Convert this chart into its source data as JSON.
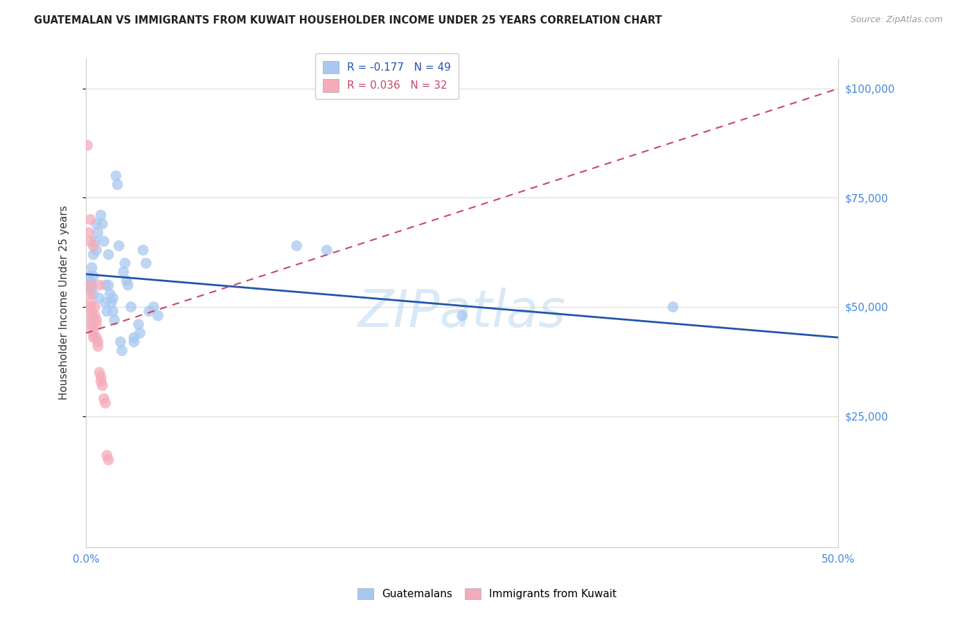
{
  "title": "GUATEMALAN VS IMMIGRANTS FROM KUWAIT HOUSEHOLDER INCOME UNDER 25 YEARS CORRELATION CHART",
  "source": "Source: ZipAtlas.com",
  "ylabel": "Householder Income Under 25 years",
  "xlim": [
    0.0,
    0.5
  ],
  "ylim": [
    -5000,
    107000
  ],
  "yticks": [
    25000,
    50000,
    75000,
    100000
  ],
  "ytick_labels": [
    "$25,000",
    "$50,000",
    "$75,000",
    "$100,000"
  ],
  "xticks": [
    0.0,
    0.05,
    0.1,
    0.15,
    0.2,
    0.25,
    0.3,
    0.35,
    0.4,
    0.45,
    0.5
  ],
  "xtick_labels": [
    "0.0%",
    "",
    "",
    "",
    "",
    "",
    "",
    "",
    "",
    "",
    "50.0%"
  ],
  "blue_color": "#A8C8F0",
  "pink_color": "#F4ABBA",
  "blue_line_color": "#2255AA",
  "pink_line_color": "#CC4466",
  "watermark": "ZIPatlas",
  "legend_R_blue": "R = -0.177",
  "legend_N_blue": "N = 49",
  "legend_R_pink": "R = 0.036",
  "legend_N_pink": "N = 32",
  "blue_dots": [
    [
      0.002,
      57000
    ],
    [
      0.003,
      56000
    ],
    [
      0.003,
      54000
    ],
    [
      0.004,
      59000
    ],
    [
      0.004,
      55000
    ],
    [
      0.005,
      62000
    ],
    [
      0.005,
      57000
    ],
    [
      0.005,
      53000
    ],
    [
      0.006,
      65000
    ],
    [
      0.007,
      69000
    ],
    [
      0.007,
      63000
    ],
    [
      0.008,
      67000
    ],
    [
      0.009,
      52000
    ],
    [
      0.01,
      71000
    ],
    [
      0.011,
      69000
    ],
    [
      0.012,
      65000
    ],
    [
      0.013,
      55000
    ],
    [
      0.013,
      51000
    ],
    [
      0.014,
      49000
    ],
    [
      0.015,
      62000
    ],
    [
      0.015,
      55000
    ],
    [
      0.016,
      53000
    ],
    [
      0.017,
      51000
    ],
    [
      0.018,
      52000
    ],
    [
      0.018,
      49000
    ],
    [
      0.019,
      47000
    ],
    [
      0.02,
      80000
    ],
    [
      0.021,
      78000
    ],
    [
      0.022,
      64000
    ],
    [
      0.023,
      42000
    ],
    [
      0.024,
      40000
    ],
    [
      0.025,
      58000
    ],
    [
      0.026,
      60000
    ],
    [
      0.027,
      56000
    ],
    [
      0.028,
      55000
    ],
    [
      0.03,
      50000
    ],
    [
      0.032,
      43000
    ],
    [
      0.032,
      42000
    ],
    [
      0.035,
      46000
    ],
    [
      0.036,
      44000
    ],
    [
      0.038,
      63000
    ],
    [
      0.04,
      60000
    ],
    [
      0.042,
      49000
    ],
    [
      0.045,
      50000
    ],
    [
      0.048,
      48000
    ],
    [
      0.14,
      64000
    ],
    [
      0.16,
      63000
    ],
    [
      0.25,
      48000
    ],
    [
      0.39,
      50000
    ]
  ],
  "pink_dots": [
    [
      0.001,
      87000
    ],
    [
      0.003,
      70000
    ],
    [
      0.002,
      67000
    ],
    [
      0.003,
      65000
    ],
    [
      0.003,
      55000
    ],
    [
      0.003,
      53000
    ],
    [
      0.003,
      51000
    ],
    [
      0.003,
      50000
    ],
    [
      0.004,
      49000
    ],
    [
      0.004,
      48000
    ],
    [
      0.004,
      47000
    ],
    [
      0.004,
      46000
    ],
    [
      0.004,
      45000
    ],
    [
      0.005,
      44000
    ],
    [
      0.005,
      43000
    ],
    [
      0.005,
      64000
    ],
    [
      0.006,
      50000
    ],
    [
      0.006,
      48000
    ],
    [
      0.007,
      47000
    ],
    [
      0.007,
      46000
    ],
    [
      0.007,
      43000
    ],
    [
      0.008,
      42000
    ],
    [
      0.008,
      41000
    ],
    [
      0.009,
      55000
    ],
    [
      0.009,
      35000
    ],
    [
      0.01,
      34000
    ],
    [
      0.01,
      33000
    ],
    [
      0.011,
      32000
    ],
    [
      0.012,
      29000
    ],
    [
      0.013,
      28000
    ],
    [
      0.014,
      16000
    ],
    [
      0.015,
      15000
    ]
  ],
  "grid_color": "#DDDDDD",
  "background_color": "#FFFFFF",
  "axis_label_color": "#4488DD",
  "spine_color": "#CCCCCC"
}
